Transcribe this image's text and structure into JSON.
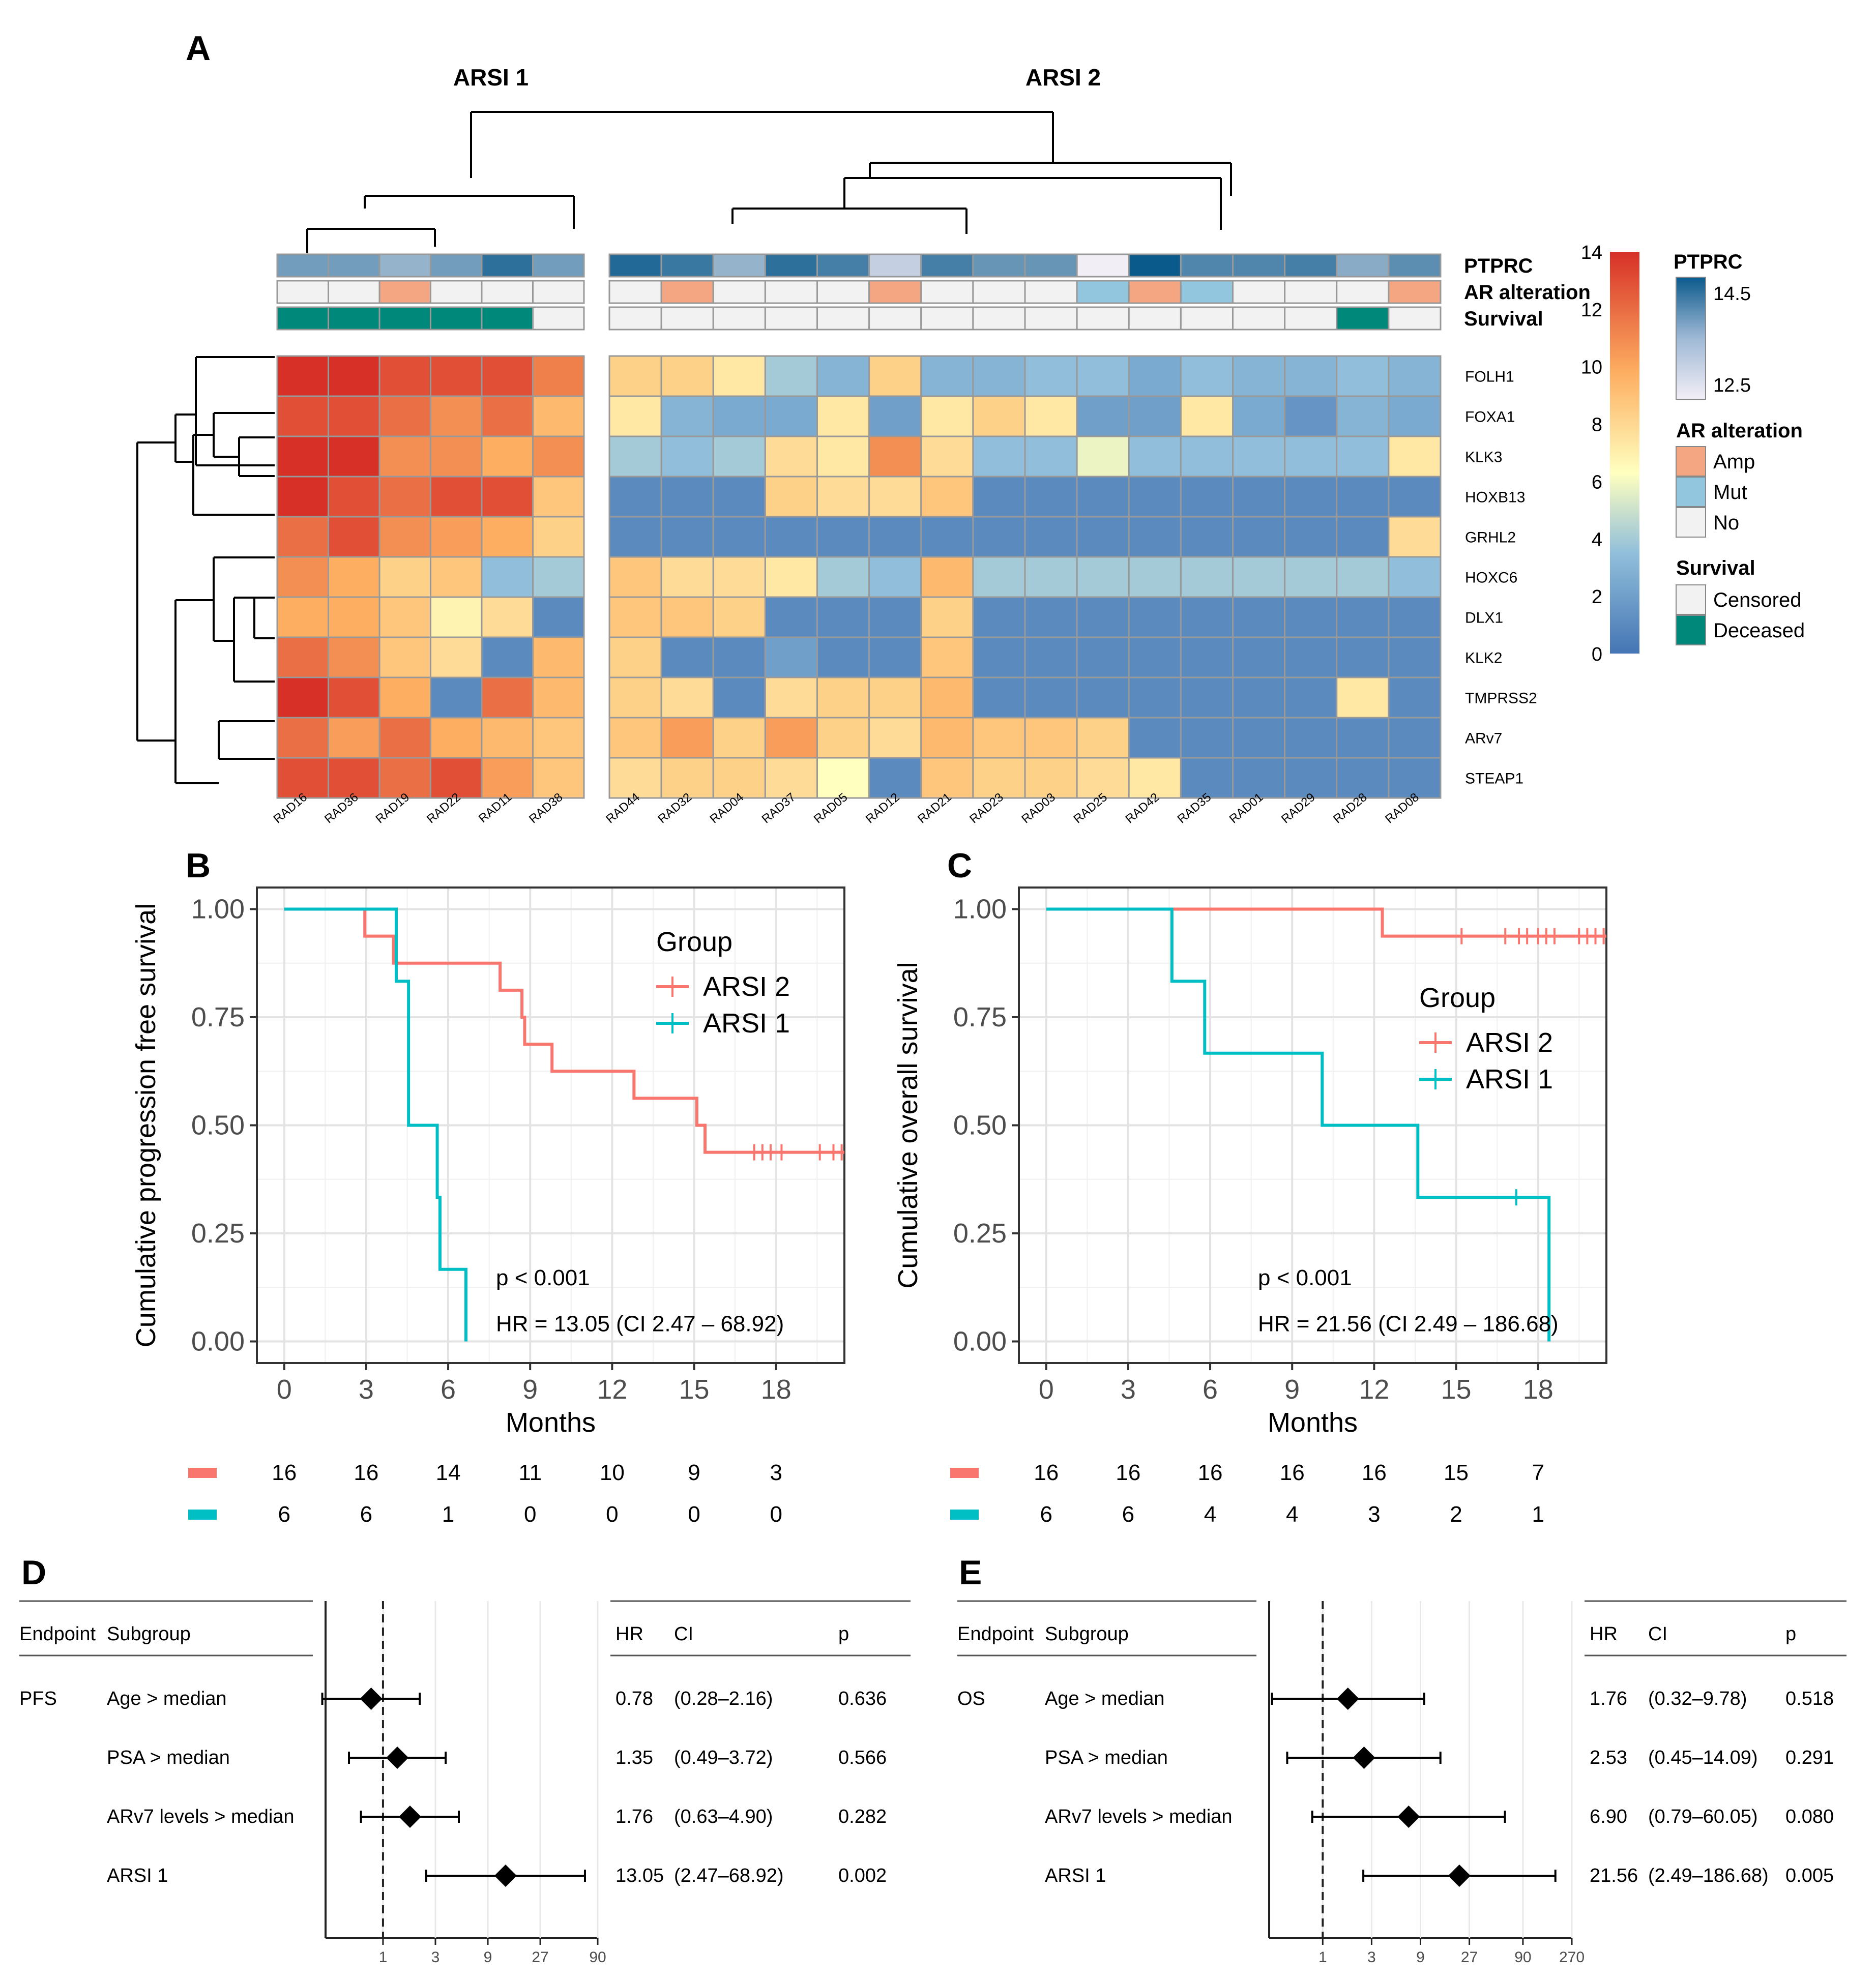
{
  "colors": {
    "heat_scale": [
      "#4575b4",
      "#91bfdb",
      "#ffffbf",
      "#fdae61",
      "#d73027"
    ],
    "ptprc_scale": [
      "#f2eef6",
      "#0b5a8c"
    ],
    "amp": "#f4a582",
    "mut": "#92c5de",
    "no": "#f2f2f2",
    "censored": "#f2f2f2",
    "deceased": "#00897b",
    "arsi2": "#f8766d",
    "arsi1": "#00bfc4"
  },
  "panels": {
    "A": "A",
    "B": "B",
    "C": "C",
    "D": "D",
    "E": "E"
  },
  "chart_data": [
    {
      "type": "heatmap",
      "panel": "A",
      "cluster_labels": [
        "ARSI 1",
        "ARSI 2"
      ],
      "samples_group1": [
        "RAD16",
        "RAD36",
        "RAD19",
        "RAD22",
        "RAD11",
        "RAD38"
      ],
      "samples_group2": [
        "RAD44",
        "RAD32",
        "RAD04",
        "RAD37",
        "RAD05",
        "RAD12",
        "RAD21",
        "RAD23",
        "RAD03",
        "RAD25",
        "RAD42",
        "RAD35",
        "RAD01",
        "RAD29",
        "RAD28",
        "RAD08"
      ],
      "genes": [
        "FOLH1",
        "FOXA1",
        "KLK3",
        "HOXB13",
        "GRHL2",
        "HOXC6",
        "DLX1",
        "KLK2",
        "TMPRSS2",
        "ARv7",
        "STEAP1"
      ],
      "annotation_rows": [
        "PTPRC",
        "AR alteration",
        "Survival"
      ],
      "ptprc": [
        13.6,
        13.6,
        13.3,
        13.6,
        14.2,
        13.6,
        14.3,
        14.1,
        13.3,
        14.2,
        14.0,
        12.9,
        14.0,
        13.7,
        13.7,
        12.5,
        14.5,
        13.9,
        13.9,
        14.0,
        13.4,
        13.8
      ],
      "ar_alteration": [
        "No",
        "No",
        "Amp",
        "No",
        "No",
        "No",
        "No",
        "Amp",
        "No",
        "No",
        "No",
        "Amp",
        "No",
        "No",
        "No",
        "Mut",
        "Amp",
        "Mut",
        "No",
        "No",
        "No",
        "Amp"
      ],
      "survival": [
        "Deceased",
        "Deceased",
        "Deceased",
        "Deceased",
        "Deceased",
        "Censored",
        "Censored",
        "Censored",
        "Censored",
        "Censored",
        "Censored",
        "Censored",
        "Censored",
        "Censored",
        "Censored",
        "Censored",
        "Censored",
        "Censored",
        "Censored",
        "Censored",
        "Deceased",
        "Censored"
      ],
      "values": [
        [
          14,
          14,
          13,
          13,
          13,
          11.5,
          8.5,
          8.5,
          7.5,
          4,
          3,
          8.5,
          3,
          3,
          3.5,
          3.5,
          2.5,
          3.5,
          3,
          3,
          3.5,
          3
        ],
        [
          13,
          13,
          12,
          11,
          12,
          9.5,
          7.5,
          3,
          2.5,
          2.5,
          7.5,
          2,
          7.5,
          8.5,
          7.5,
          2,
          2,
          7.5,
          2.5,
          1.5,
          3,
          2.5
        ],
        [
          14,
          14,
          11,
          11,
          10,
          11,
          4,
          3.5,
          4,
          8,
          7.5,
          11,
          8,
          3.5,
          3.5,
          6,
          3.5,
          3.5,
          3.5,
          3.5,
          3.5,
          7.5
        ],
        [
          14,
          13,
          12,
          13,
          13,
          9,
          1,
          1,
          1,
          8.5,
          8,
          8,
          9,
          1,
          1,
          1,
          1,
          1,
          1,
          1,
          1,
          1
        ],
        [
          12,
          13,
          11,
          10.5,
          10,
          8.5,
          1,
          1,
          1,
          1,
          1,
          1,
          1,
          1,
          1,
          1,
          1,
          1,
          1,
          1,
          1,
          8
        ],
        [
          11,
          10,
          8.5,
          9,
          3.5,
          4,
          9,
          8,
          8,
          7.5,
          4,
          3.5,
          9.5,
          4,
          4,
          4,
          4,
          4,
          4,
          4,
          4,
          3.5
        ],
        [
          10,
          10,
          9,
          7,
          8,
          1,
          9,
          9,
          8.5,
          1,
          1,
          1,
          8.5,
          1,
          1,
          1,
          1,
          1,
          1,
          1,
          1,
          1
        ],
        [
          12,
          11,
          9,
          8,
          1,
          9.5,
          8.5,
          1,
          1,
          2,
          1,
          1,
          9,
          1,
          1,
          1,
          1,
          1,
          1,
          1,
          1,
          1
        ],
        [
          14,
          13,
          10,
          1,
          12,
          9.5,
          8.5,
          8,
          1,
          8,
          8.5,
          8.5,
          9.5,
          1,
          1,
          1,
          1,
          1,
          1,
          1,
          7.5,
          1
        ],
        [
          12,
          10.5,
          12,
          10,
          9.5,
          9,
          9,
          10.5,
          8.5,
          10.5,
          8.5,
          8,
          9.5,
          9,
          9,
          8.5,
          1,
          1,
          1,
          1,
          1,
          1
        ],
        [
          13,
          13,
          12,
          13,
          10.5,
          9,
          8,
          8.5,
          8.5,
          8,
          6.5,
          1,
          9,
          8.5,
          8.5,
          8,
          7.5,
          1,
          1,
          1,
          1,
          1
        ]
      ],
      "legend_heat_ticks": [
        "0",
        "2",
        "4",
        "6",
        "8",
        "10",
        "12",
        "14"
      ],
      "legend_ptprc_title": "PTPRC",
      "legend_ptprc_ticks": [
        "14.5",
        "12.5"
      ],
      "legend_ar_title": "AR alteration",
      "legend_ar_items": [
        "Amp",
        "Mut",
        "No"
      ],
      "legend_surv_title": "Survival",
      "legend_surv_items": [
        "Censored",
        "Deceased"
      ]
    },
    {
      "type": "line",
      "panel": "B",
      "ylabel": "Cumulative progression free survival",
      "xlabel": "Months",
      "xticks": [
        "0",
        "3",
        "6",
        "9",
        "12",
        "15",
        "18"
      ],
      "yticks": [
        "0.00",
        "0.25",
        "0.50",
        "0.75",
        "1.00"
      ],
      "xlim": [
        -1,
        20.5
      ],
      "ylim": [
        -0.05,
        1.05
      ],
      "legend_title": "Group",
      "series": [
        {
          "name": "ARSI 2",
          "color_key": "arsi2",
          "steps": [
            [
              0,
              1
            ],
            [
              2.95,
              0.9375
            ],
            [
              4.0,
              0.875
            ],
            [
              7.9,
              0.8125
            ],
            [
              8.7,
              0.75
            ],
            [
              8.8,
              0.6875
            ],
            [
              9.8,
              0.625
            ],
            [
              12.8,
              0.5625
            ],
            [
              15.1,
              0.5
            ],
            [
              15.4,
              0.4375
            ],
            [
              20.5,
              0.4375
            ]
          ],
          "censor": [
            17.2,
            17.5,
            17.8,
            18.2,
            19.6,
            20.1,
            20.4
          ]
        },
        {
          "name": "ARSI 1",
          "color_key": "arsi1",
          "steps": [
            [
              0,
              1
            ],
            [
              4.1,
              0.8333
            ],
            [
              4.55,
              0.5
            ],
            [
              5.6,
              0.3333
            ],
            [
              5.7,
              0.1667
            ],
            [
              6.65,
              0
            ],
            [
              6.65,
              0
            ]
          ],
          "censor": []
        }
      ],
      "annotation_p": "p < 0.001",
      "annotation_hr": "HR = 13.05 (CI 2.47 – 68.92)",
      "risk_table": {
        "ARSI 2": [
          "16",
          "16",
          "14",
          "11",
          "10",
          "9",
          "3"
        ],
        "ARSI 1": [
          "6",
          "6",
          "1",
          "0",
          "0",
          "0",
          "0"
        ]
      }
    },
    {
      "type": "line",
      "panel": "C",
      "ylabel": "Cumulative overall survival",
      "xlabel": "Months",
      "xticks": [
        "0",
        "3",
        "6",
        "9",
        "12",
        "15",
        "18"
      ],
      "yticks": [
        "0.00",
        "0.25",
        "0.50",
        "0.75",
        "1.00"
      ],
      "xlim": [
        -1,
        20.5
      ],
      "ylim": [
        -0.05,
        1.05
      ],
      "legend_title": "Group",
      "series": [
        {
          "name": "ARSI 2",
          "color_key": "arsi2",
          "steps": [
            [
              0,
              1
            ],
            [
              12.3,
              0.9375
            ],
            [
              20.5,
              0.9375
            ]
          ],
          "censor": [
            15.2,
            16.8,
            17.3,
            17.6,
            18.0,
            18.3,
            18.6,
            19.5,
            19.8,
            20.1,
            20.4
          ]
        },
        {
          "name": "ARSI 1",
          "color_key": "arsi1",
          "steps": [
            [
              0,
              1
            ],
            [
              4.6,
              0.8333
            ],
            [
              5.8,
              0.6667
            ],
            [
              10.1,
              0.5
            ],
            [
              13.6,
              0.3333
            ],
            [
              18.4,
              0
            ],
            [
              18.4,
              0
            ]
          ],
          "censor": [
            17.2
          ]
        }
      ],
      "annotation_p": "p < 0.001",
      "annotation_hr": "HR = 21.56 (CI 2.49 – 186.68)",
      "risk_table": {
        "ARSI 2": [
          "16",
          "16",
          "16",
          "16",
          "16",
          "15",
          "7"
        ],
        "ARSI 1": [
          "6",
          "6",
          "4",
          "4",
          "3",
          "2",
          "1"
        ]
      }
    },
    {
      "type": "scatter",
      "panel": "D",
      "headers": {
        "endpoint": "Endpoint",
        "subgroup": "Subgroup",
        "hr": "HR",
        "ci": "CI",
        "p": "p"
      },
      "xscale": "log3",
      "xticks": [
        "1",
        "3",
        "9",
        "27",
        "90"
      ],
      "xtick_values": [
        1,
        3,
        9,
        27,
        90
      ],
      "xlim": [
        0.3,
        90
      ],
      "rows": [
        {
          "endpoint": "PFS",
          "subgroup": "Age > median",
          "hr": 0.78,
          "lo": 0.28,
          "hi": 2.16,
          "hr_text": "0.78",
          "ci_text": "(0.28–2.16)",
          "p_text": "0.636"
        },
        {
          "endpoint": "",
          "subgroup": "PSA > median",
          "hr": 1.35,
          "lo": 0.49,
          "hi": 3.72,
          "hr_text": "1.35",
          "ci_text": "(0.49–3.72)",
          "p_text": "0.566"
        },
        {
          "endpoint": "",
          "subgroup": "ARv7 levels > median",
          "hr": 1.76,
          "lo": 0.63,
          "hi": 4.9,
          "hr_text": "1.76",
          "ci_text": "(0.63–4.90)",
          "p_text": "0.282"
        },
        {
          "endpoint": "",
          "subgroup": "ARSI 1",
          "hr": 13.05,
          "lo": 2.47,
          "hi": 68.92,
          "hr_text": "13.05",
          "ci_text": "(2.47–68.92)",
          "p_text": "0.002"
        }
      ]
    },
    {
      "type": "scatter",
      "panel": "E",
      "headers": {
        "endpoint": "Endpoint",
        "subgroup": "Subgroup",
        "hr": "HR",
        "ci": "CI",
        "p": "p"
      },
      "xscale": "log3",
      "xticks": [
        "1",
        "3",
        "9",
        "27",
        "90",
        "270"
      ],
      "xtick_values": [
        1,
        3,
        9,
        27,
        90,
        270
      ],
      "xlim": [
        0.3,
        270
      ],
      "rows": [
        {
          "endpoint": "OS",
          "subgroup": "Age > median",
          "hr": 1.76,
          "lo": 0.32,
          "hi": 9.78,
          "hr_text": "1.76",
          "ci_text": "(0.32–9.78)",
          "p_text": "0.518"
        },
        {
          "endpoint": "",
          "subgroup": "PSA > median",
          "hr": 2.53,
          "lo": 0.45,
          "hi": 14.09,
          "hr_text": "2.53",
          "ci_text": "(0.45–14.09)",
          "p_text": "0.291"
        },
        {
          "endpoint": "",
          "subgroup": "ARv7 levels > median",
          "hr": 6.9,
          "lo": 0.79,
          "hi": 60.05,
          "hr_text": "6.90",
          "ci_text": "(0.79–60.05)",
          "p_text": "0.080"
        },
        {
          "endpoint": "",
          "subgroup": "ARSI 1",
          "hr": 21.56,
          "lo": 2.49,
          "hi": 186.68,
          "hr_text": "21.56",
          "ci_text": "(2.49–186.68)",
          "p_text": "0.005"
        }
      ]
    }
  ]
}
